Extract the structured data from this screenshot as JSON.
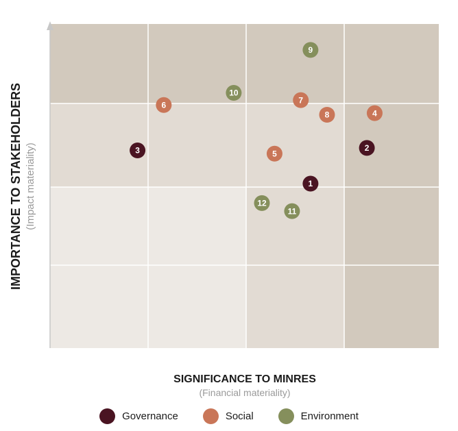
{
  "chart_data": {
    "type": "scatter",
    "xlabel": "SIGNIFICANCE TO MINRES",
    "xlabel_sub": "(Financial materiality)",
    "ylabel": "IMPORTANCE TO STAKEHOLDERS",
    "ylabel_sub": "(Impact materiality)",
    "xlim": [
      0,
      4
    ],
    "ylim": [
      0,
      4
    ],
    "grid": true,
    "legend_placement": "bottom-center",
    "series": [
      {
        "name": "Governance",
        "color": "#4a1422",
        "points": [
          {
            "label": "1",
            "x": 2.68,
            "y": 2.03
          },
          {
            "label": "2",
            "x": 3.26,
            "y": 2.47
          },
          {
            "label": "3",
            "x": 0.9,
            "y": 2.44
          }
        ]
      },
      {
        "name": "Social",
        "color": "#c97658",
        "points": [
          {
            "label": "4",
            "x": 3.34,
            "y": 2.9
          },
          {
            "label": "5",
            "x": 2.31,
            "y": 2.4
          },
          {
            "label": "6",
            "x": 1.17,
            "y": 3.0
          },
          {
            "label": "7",
            "x": 2.58,
            "y": 3.06
          },
          {
            "label": "8",
            "x": 2.85,
            "y": 2.88
          }
        ]
      },
      {
        "name": "Environment",
        "color": "#858f5c",
        "points": [
          {
            "label": "9",
            "x": 2.68,
            "y": 3.68
          },
          {
            "label": "10",
            "x": 1.89,
            "y": 3.15
          },
          {
            "label": "11",
            "x": 2.49,
            "y": 1.69
          },
          {
            "label": "12",
            "x": 2.18,
            "y": 1.79
          }
        ]
      }
    ]
  },
  "colors": {
    "cell_light": "#ede9e4",
    "cell_mid": "#e2dbd3",
    "cell_dark": "#d2c9bd",
    "grid_line": "#ffffff",
    "axis_line": "#c7c7c7"
  }
}
